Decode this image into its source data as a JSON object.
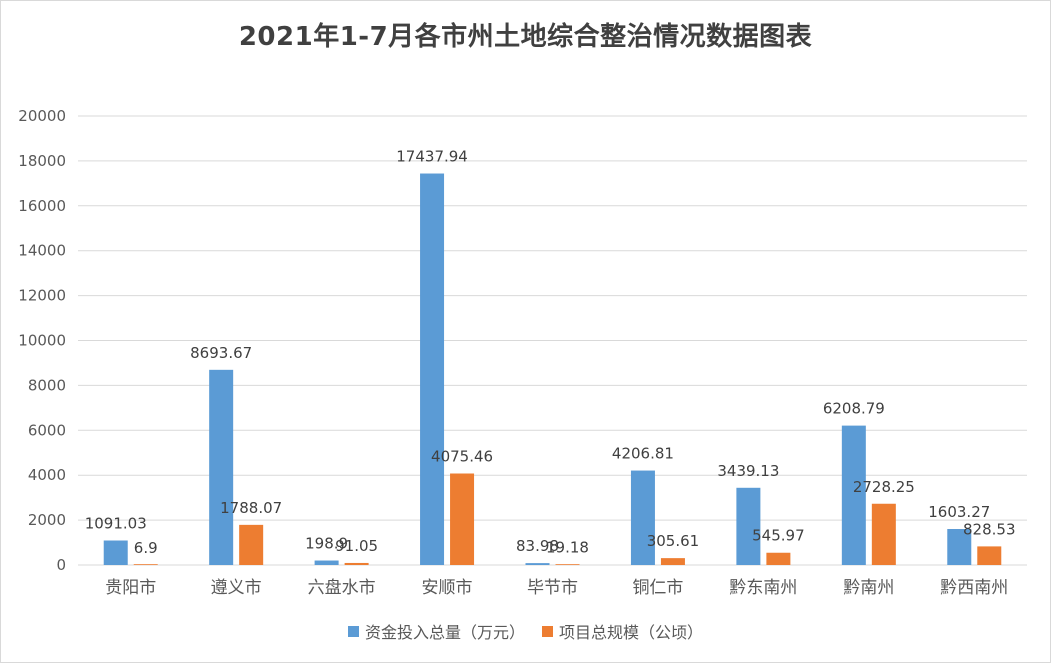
{
  "chart_data": {
    "type": "bar",
    "title": "2021年1-7月各市州土地综合整治情况数据图表",
    "categories": [
      "贵阳市",
      "遵义市",
      "六盘水市",
      "安顺市",
      "毕节市",
      "铜仁市",
      "黔东南州",
      "黔南州",
      "黔西南州"
    ],
    "series": [
      {
        "name": "资金投入总量（万元）",
        "color": "#5b9bd5",
        "values": [
          1091.03,
          8693.67,
          198.9,
          17437.94,
          83.98,
          4206.81,
          3439.13,
          6208.79,
          1603.27
        ],
        "labels": [
          "1091.03",
          "8693.67",
          "198.9",
          "17437.94",
          "83.98",
          "4206.81",
          "3439.13",
          "6208.79",
          "1603.27"
        ]
      },
      {
        "name": "项目总规模（公顷）",
        "color": "#ed7d31",
        "values": [
          6.9,
          1788.07,
          91.05,
          4075.46,
          19.18,
          305.61,
          545.97,
          2728.25,
          828.53
        ],
        "labels": [
          "6.9",
          "1788.07",
          "91.05",
          "4075.46",
          "19.18",
          "305.61",
          "545.97",
          "2728.25",
          "828.53"
        ]
      }
    ],
    "ylim": [
      0,
      20000
    ],
    "yticks": [
      "0",
      "2000",
      "4000",
      "6000",
      "8000",
      "10000",
      "12000",
      "14000",
      "16000",
      "18000",
      "20000"
    ],
    "grid": true,
    "legend_position": "bottom"
  }
}
